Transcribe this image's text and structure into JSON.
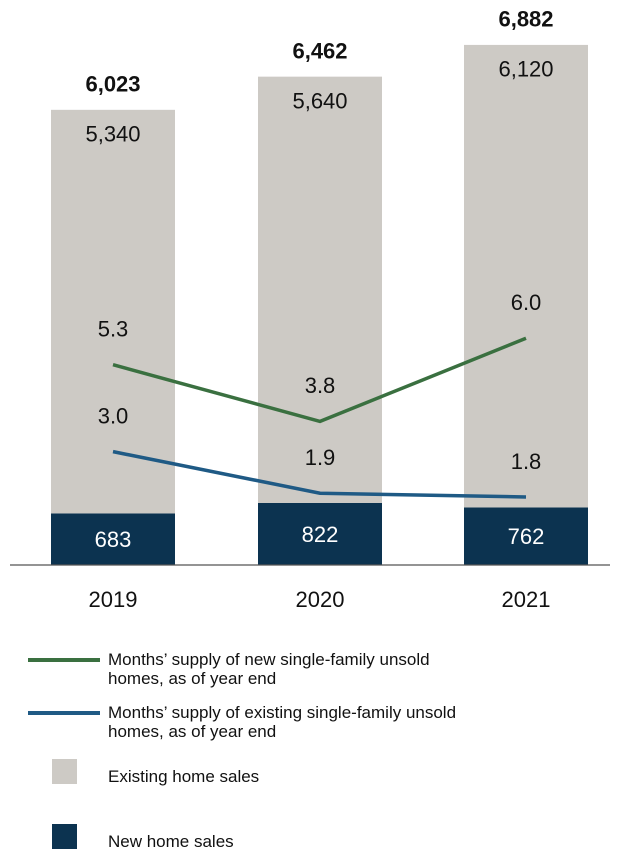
{
  "chart_data": {
    "type": "bar-line",
    "categories": [
      "2019",
      "2020",
      "2021"
    ],
    "series": [
      {
        "name": "New home sales",
        "type": "bar",
        "color": "#0c3350",
        "values": [
          683,
          822,
          762
        ],
        "value_labels": [
          "683",
          "822",
          "762"
        ]
      },
      {
        "name": "Existing home sales",
        "type": "bar",
        "color": "#cdcac5",
        "values": [
          5340,
          5640,
          6120
        ],
        "value_labels": [
          "5,340",
          "5,640",
          "6,120"
        ]
      },
      {
        "name": "Months’ supply of new single-family unsold homes, as of year end",
        "type": "line",
        "axis": "y2",
        "color": "#3a7040",
        "values": [
          5.3,
          3.8,
          6.0
        ],
        "value_labels": [
          "5.3",
          "3.8",
          "6.0"
        ]
      },
      {
        "name": "Months’ supply of existing single-family unsold homes, as of year end",
        "type": "line",
        "axis": "y2",
        "color": "#1f5a85",
        "values": [
          3.0,
          1.9,
          1.8
        ],
        "value_labels": [
          "3.0",
          "1.9",
          "1.8"
        ]
      }
    ],
    "totals": [
      6023,
      6462,
      6882
    ],
    "total_labels": [
      "6,023",
      "6,462",
      "6,882"
    ],
    "ylim": [
      0,
      7000
    ],
    "y2lim": [
      0,
      14
    ]
  }
}
